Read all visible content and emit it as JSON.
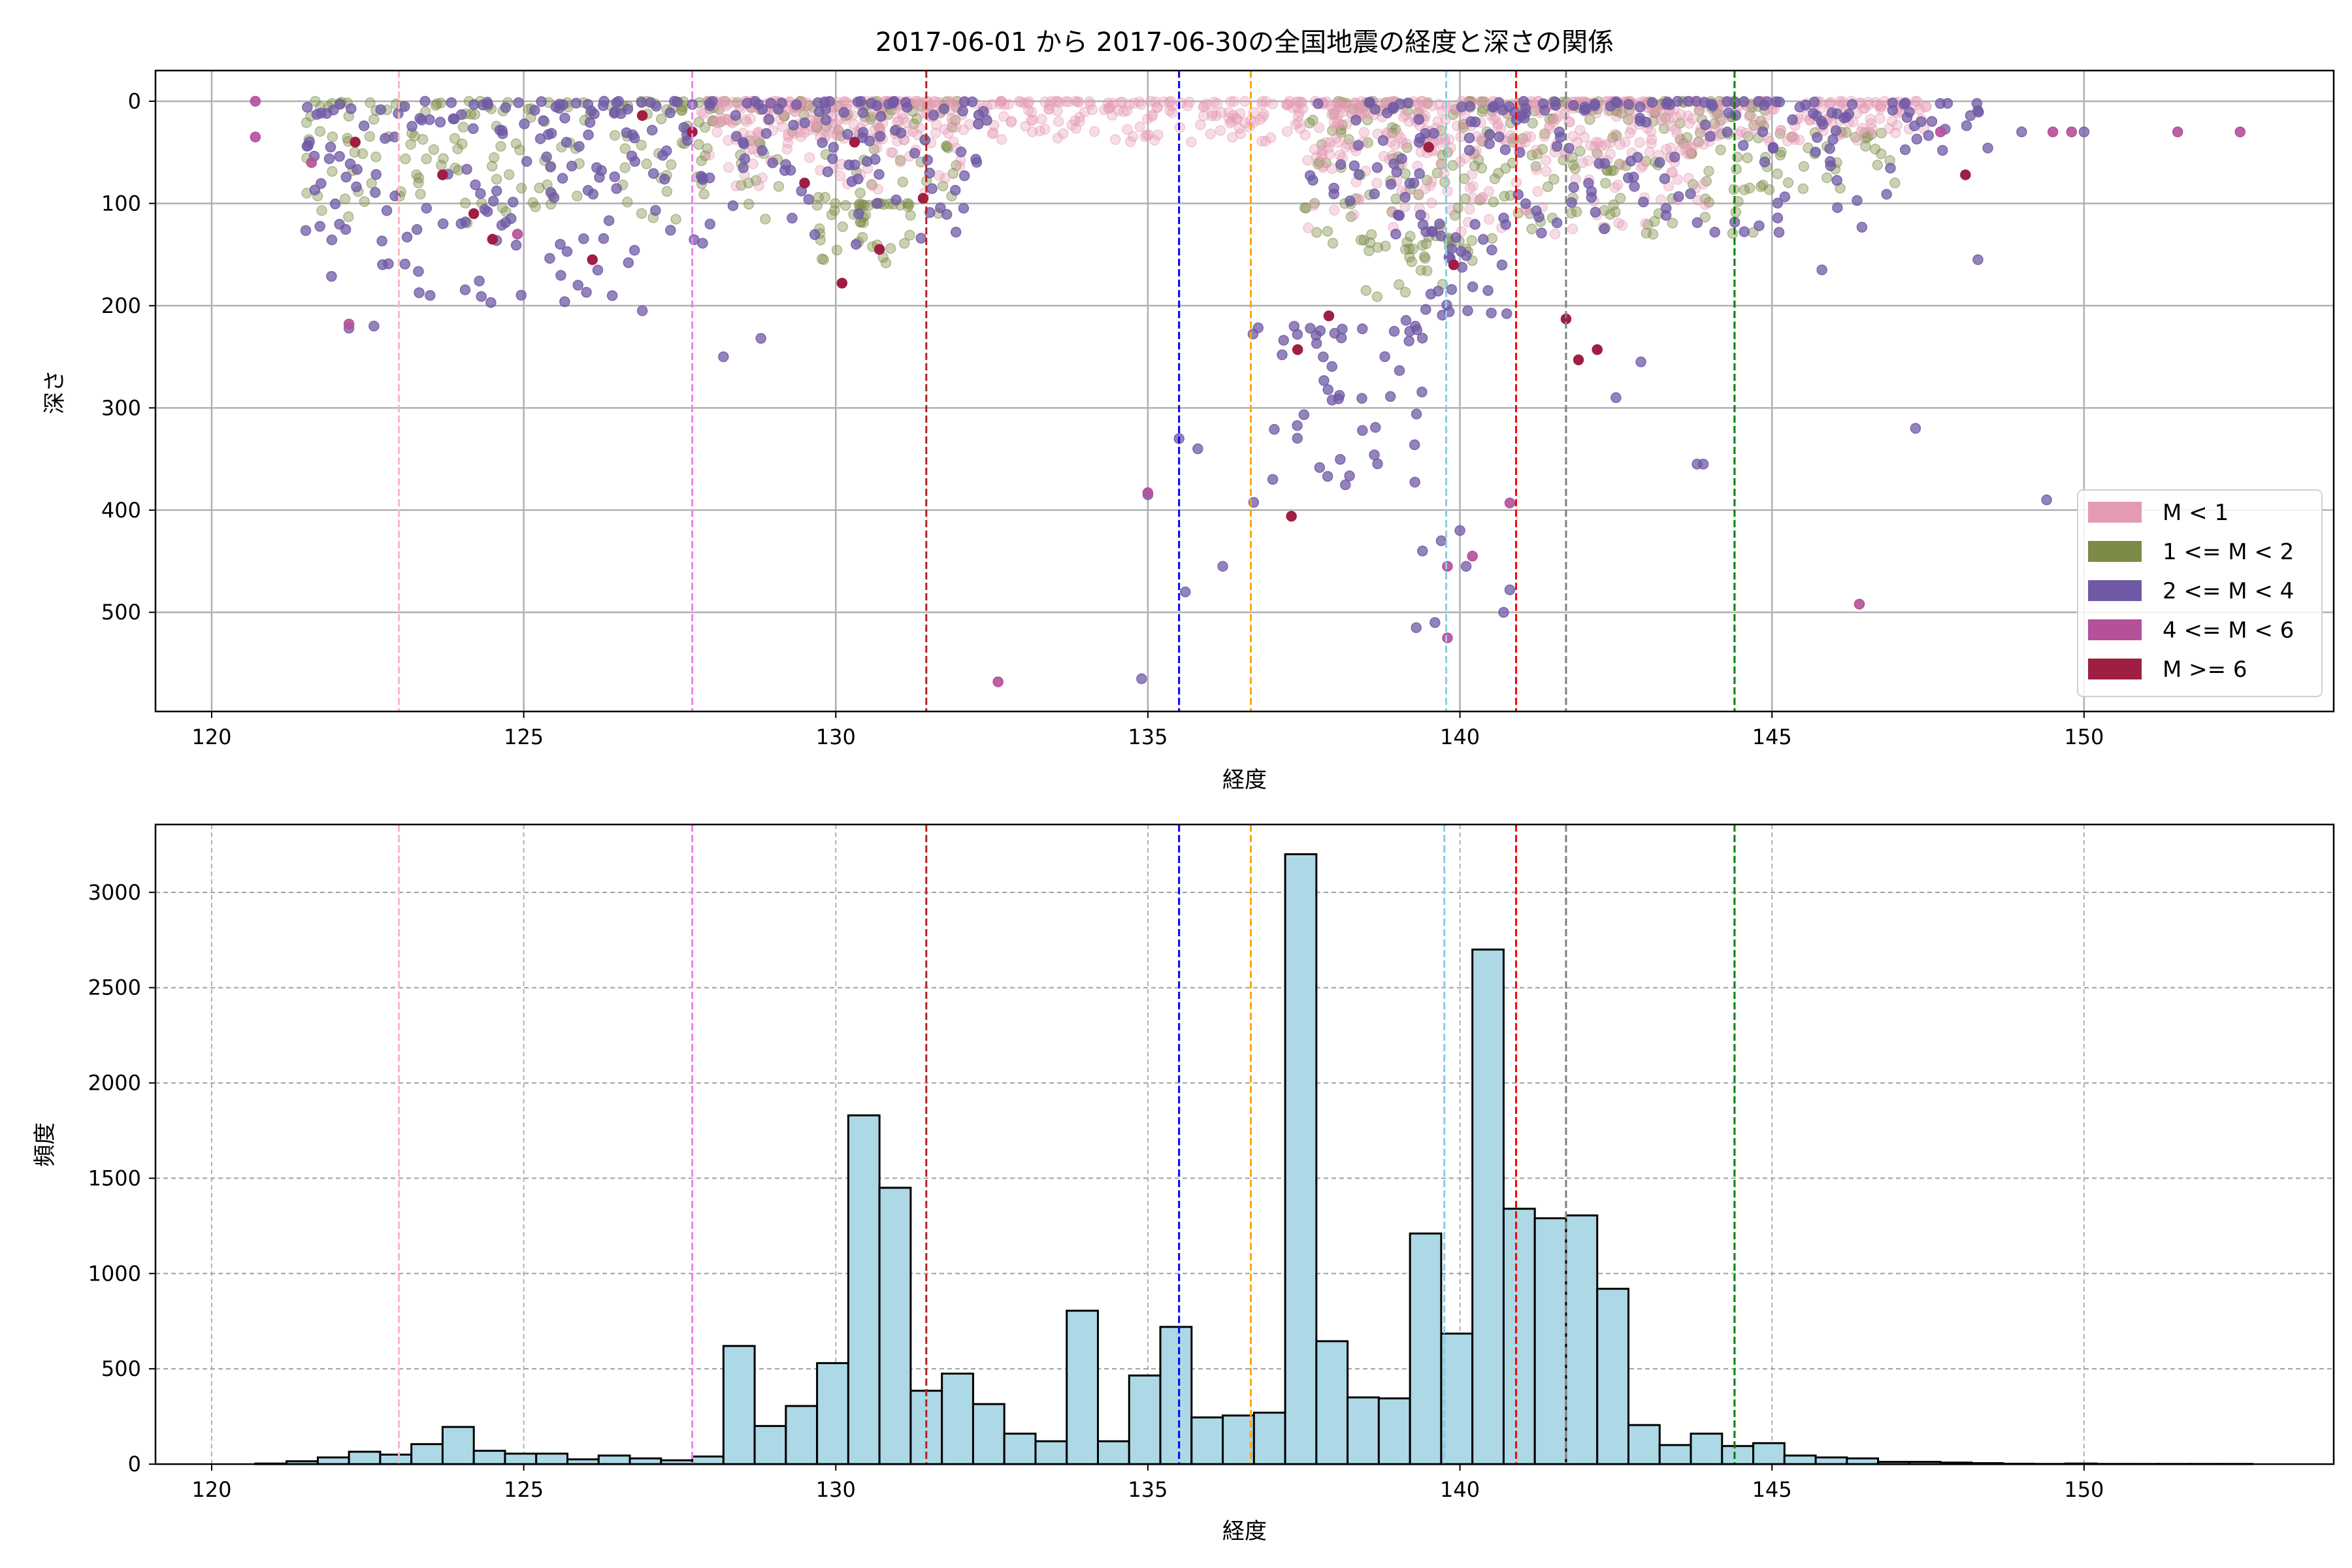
{
  "chart_data": [
    {
      "type": "scatter",
      "title": "2017-06-01 から 2017-06-30の全国地震の経度と深さの関係",
      "xlabel": "経度",
      "ylabel": "深さ",
      "xlim": [
        119.1,
        154.0
      ],
      "ylim": [
        597,
        -30
      ],
      "y_inverted": true,
      "xticks": [
        120,
        125,
        130,
        135,
        140,
        145,
        150
      ],
      "yticks": [
        0,
        100,
        200,
        300,
        400,
        500
      ],
      "grid": true,
      "legend_position": "bottom-right",
      "categories": [
        {
          "name": "M < 1",
          "color": "#e59ab4",
          "alpha": 0.35
        },
        {
          "name": "1 <= M < 2",
          "color": "#7b8b45",
          "alpha": 0.4
        },
        {
          "name": "2 <= M < 4",
          "color": "#705aa6",
          "alpha": 0.75
        },
        {
          "name": "4 <= M < 6",
          "color": "#b5509a",
          "alpha": 0.9
        },
        {
          "name": "M >= 6",
          "color": "#9f1f42",
          "alpha": 1.0
        }
      ],
      "clusters": [
        {
          "cat": 0,
          "lon": [
            128,
            147.5
          ],
          "depth": [
            0,
            40
          ],
          "n": 650
        },
        {
          "cat": 0,
          "lon": [
            137.5,
            144
          ],
          "depth": [
            40,
            130
          ],
          "n": 160
        },
        {
          "cat": 0,
          "lon": [
            127.8,
            132
          ],
          "depth": [
            0,
            90
          ],
          "n": 110
        },
        {
          "cat": 1,
          "lon": [
            121.5,
            132
          ],
          "depth": [
            0,
            120
          ],
          "n": 260
        },
        {
          "cat": 1,
          "lon": [
            129.7,
            131.2
          ],
          "depth": [
            100,
            160
          ],
          "n": 40
        },
        {
          "cat": 1,
          "lon": [
            137.5,
            145
          ],
          "depth": [
            0,
            140
          ],
          "n": 260
        },
        {
          "cat": 1,
          "lon": [
            138.4,
            140.2
          ],
          "depth": [
            130,
            200
          ],
          "n": 30
        },
        {
          "cat": 1,
          "lon": [
            145,
            147
          ],
          "depth": [
            30,
            90
          ],
          "n": 30
        },
        {
          "cat": 2,
          "lon": [
            121.5,
            127
          ],
          "depth": [
            0,
            200
          ],
          "n": 150
        },
        {
          "cat": 2,
          "lon": [
            127,
            132.5
          ],
          "depth": [
            0,
            140
          ],
          "n": 120
        },
        {
          "cat": 2,
          "lon": [
            137.5,
            147
          ],
          "depth": [
            0,
            130
          ],
          "n": 180
        },
        {
          "cat": 2,
          "lon": [
            139,
            141
          ],
          "depth": [
            120,
            220
          ],
          "n": 30
        },
        {
          "cat": 2,
          "lon": [
            136.6,
            139.4
          ],
          "depth": [
            220,
            410
          ],
          "n": 50
        },
        {
          "cat": 2,
          "lon": [
            147,
            148.5
          ],
          "depth": [
            0,
            60
          ],
          "n": 20
        }
      ],
      "points": [
        {
          "cat": 2,
          "lon": 135.0,
          "depth": 385
        },
        {
          "cat": 2,
          "lon": 135.5,
          "depth": 330
        },
        {
          "cat": 2,
          "lon": 135.8,
          "depth": 340
        },
        {
          "cat": 2,
          "lon": 135.6,
          "depth": 480
        },
        {
          "cat": 2,
          "lon": 136.2,
          "depth": 455
        },
        {
          "cat": 2,
          "lon": 134.9,
          "depth": 565
        },
        {
          "cat": 2,
          "lon": 139.4,
          "depth": 440
        },
        {
          "cat": 2,
          "lon": 139.7,
          "depth": 430
        },
        {
          "cat": 2,
          "lon": 140.0,
          "depth": 420
        },
        {
          "cat": 2,
          "lon": 139.3,
          "depth": 515
        },
        {
          "cat": 2,
          "lon": 139.6,
          "depth": 510
        },
        {
          "cat": 2,
          "lon": 140.1,
          "depth": 455
        },
        {
          "cat": 2,
          "lon": 140.7,
          "depth": 500
        },
        {
          "cat": 2,
          "lon": 140.8,
          "depth": 478
        },
        {
          "cat": 2,
          "lon": 143.8,
          "depth": 355
        },
        {
          "cat": 2,
          "lon": 143.9,
          "depth": 355
        },
        {
          "cat": 2,
          "lon": 149.4,
          "depth": 390
        },
        {
          "cat": 2,
          "lon": 147.3,
          "depth": 320
        },
        {
          "cat": 2,
          "lon": 142.5,
          "depth": 290
        },
        {
          "cat": 2,
          "lon": 142.9,
          "depth": 255
        },
        {
          "cat": 2,
          "lon": 128.2,
          "depth": 250
        },
        {
          "cat": 2,
          "lon": 128.8,
          "depth": 232
        },
        {
          "cat": 2,
          "lon": 122.2,
          "depth": 222
        },
        {
          "cat": 2,
          "lon": 122.6,
          "depth": 220
        },
        {
          "cat": 2,
          "lon": 126.9,
          "depth": 205
        },
        {
          "cat": 2,
          "lon": 123.5,
          "depth": 190
        },
        {
          "cat": 2,
          "lon": 148.3,
          "depth": 155
        },
        {
          "cat": 2,
          "lon": 145.8,
          "depth": 165
        },
        {
          "cat": 2,
          "lon": 149.0,
          "depth": 30
        },
        {
          "cat": 2,
          "lon": 150.0,
          "depth": 30
        },
        {
          "cat": 3,
          "lon": 120.7,
          "depth": 0
        },
        {
          "cat": 3,
          "lon": 120.7,
          "depth": 35
        },
        {
          "cat": 3,
          "lon": 132.6,
          "depth": 568
        },
        {
          "cat": 3,
          "lon": 135.0,
          "depth": 383
        },
        {
          "cat": 3,
          "lon": 139.8,
          "depth": 455
        },
        {
          "cat": 3,
          "lon": 140.2,
          "depth": 445
        },
        {
          "cat": 3,
          "lon": 139.8,
          "depth": 525
        },
        {
          "cat": 3,
          "lon": 140.8,
          "depth": 393
        },
        {
          "cat": 3,
          "lon": 146.4,
          "depth": 492
        },
        {
          "cat": 3,
          "lon": 149.5,
          "depth": 30
        },
        {
          "cat": 3,
          "lon": 149.8,
          "depth": 30
        },
        {
          "cat": 3,
          "lon": 151.5,
          "depth": 30
        },
        {
          "cat": 3,
          "lon": 152.5,
          "depth": 30
        },
        {
          "cat": 3,
          "lon": 147.7,
          "depth": 30
        },
        {
          "cat": 3,
          "lon": 122.2,
          "depth": 218
        },
        {
          "cat": 3,
          "lon": 124.9,
          "depth": 130
        },
        {
          "cat": 3,
          "lon": 121.6,
          "depth": 60
        },
        {
          "cat": 4,
          "lon": 131.4,
          "depth": 95
        },
        {
          "cat": 4,
          "lon": 130.1,
          "depth": 178
        },
        {
          "cat": 4,
          "lon": 130.7,
          "depth": 145
        },
        {
          "cat": 4,
          "lon": 137.4,
          "depth": 243
        },
        {
          "cat": 4,
          "lon": 137.9,
          "depth": 210
        },
        {
          "cat": 4,
          "lon": 139.9,
          "depth": 160
        },
        {
          "cat": 4,
          "lon": 141.7,
          "depth": 213
        },
        {
          "cat": 4,
          "lon": 141.9,
          "depth": 253
        },
        {
          "cat": 4,
          "lon": 142.2,
          "depth": 243
        },
        {
          "cat": 4,
          "lon": 148.1,
          "depth": 72
        },
        {
          "cat": 4,
          "lon": 126.9,
          "depth": 14
        },
        {
          "cat": 4,
          "lon": 126.1,
          "depth": 155
        },
        {
          "cat": 4,
          "lon": 124.5,
          "depth": 135
        },
        {
          "cat": 4,
          "lon": 123.7,
          "depth": 72
        },
        {
          "cat": 4,
          "lon": 124.2,
          "depth": 110
        },
        {
          "cat": 4,
          "lon": 129.5,
          "depth": 80
        },
        {
          "cat": 4,
          "lon": 130.3,
          "depth": 40
        },
        {
          "cat": 4,
          "lon": 127.7,
          "depth": 30
        },
        {
          "cat": 4,
          "lon": 122.3,
          "depth": 40
        },
        {
          "cat": 4,
          "lon": 139.5,
          "depth": 45
        },
        {
          "cat": 4,
          "lon": 137.3,
          "depth": 406
        }
      ],
      "reference_lines": [
        {
          "lon": 123.0,
          "color": "#ffb6c1"
        },
        {
          "lon": 127.7,
          "color": "#ee82ee"
        },
        {
          "lon": 131.45,
          "color": "#b22222"
        },
        {
          "lon": 135.5,
          "color": "#0000ff"
        },
        {
          "lon": 136.65,
          "color": "#ffa500"
        },
        {
          "lon": 139.78,
          "color": "#87ceeb"
        },
        {
          "lon": 140.9,
          "color": "#ff0000"
        },
        {
          "lon": 141.7,
          "color": "#808080"
        },
        {
          "lon": 144.4,
          "color": "#008000"
        }
      ]
    },
    {
      "type": "bar",
      "subtype": "histogram",
      "xlabel": "経度",
      "ylabel": "頻度",
      "xlim": [
        119.1,
        154.0
      ],
      "ylim": [
        0,
        3356
      ],
      "xticks": [
        120,
        125,
        130,
        135,
        140,
        145,
        150
      ],
      "yticks": [
        0,
        500,
        1000,
        1500,
        2000,
        2500,
        3000
      ],
      "grid": true,
      "bar_color": "#add8e6",
      "edge_color": "#000000",
      "bin_start": 120.7,
      "bin_width": 0.5,
      "counts": [
        3,
        15,
        35,
        65,
        50,
        105,
        195,
        70,
        55,
        55,
        25,
        45,
        30,
        20,
        40,
        620,
        200,
        305,
        530,
        1830,
        1450,
        385,
        475,
        315,
        160,
        120,
        805,
        120,
        465,
        720,
        245,
        255,
        270,
        3200,
        645,
        350,
        345,
        1210,
        685,
        2700,
        1340,
        1290,
        1305,
        920,
        205,
        100,
        160,
        95,
        110,
        45,
        35,
        30,
        12,
        12,
        8,
        5,
        2,
        1,
        3,
        1,
        1,
        1,
        1,
        1
      ],
      "reference_lines": [
        {
          "lon": 123.0,
          "color": "#ffb6c1"
        },
        {
          "lon": 127.7,
          "color": "#ee82ee"
        },
        {
          "lon": 131.45,
          "color": "#b22222"
        },
        {
          "lon": 135.5,
          "color": "#0000ff"
        },
        {
          "lon": 136.65,
          "color": "#ffa500"
        },
        {
          "lon": 139.75,
          "color": "#87ceeb"
        },
        {
          "lon": 140.9,
          "color": "#ff0000"
        },
        {
          "lon": 141.7,
          "color": "#808080"
        },
        {
          "lon": 144.4,
          "color": "#008000"
        }
      ]
    }
  ]
}
